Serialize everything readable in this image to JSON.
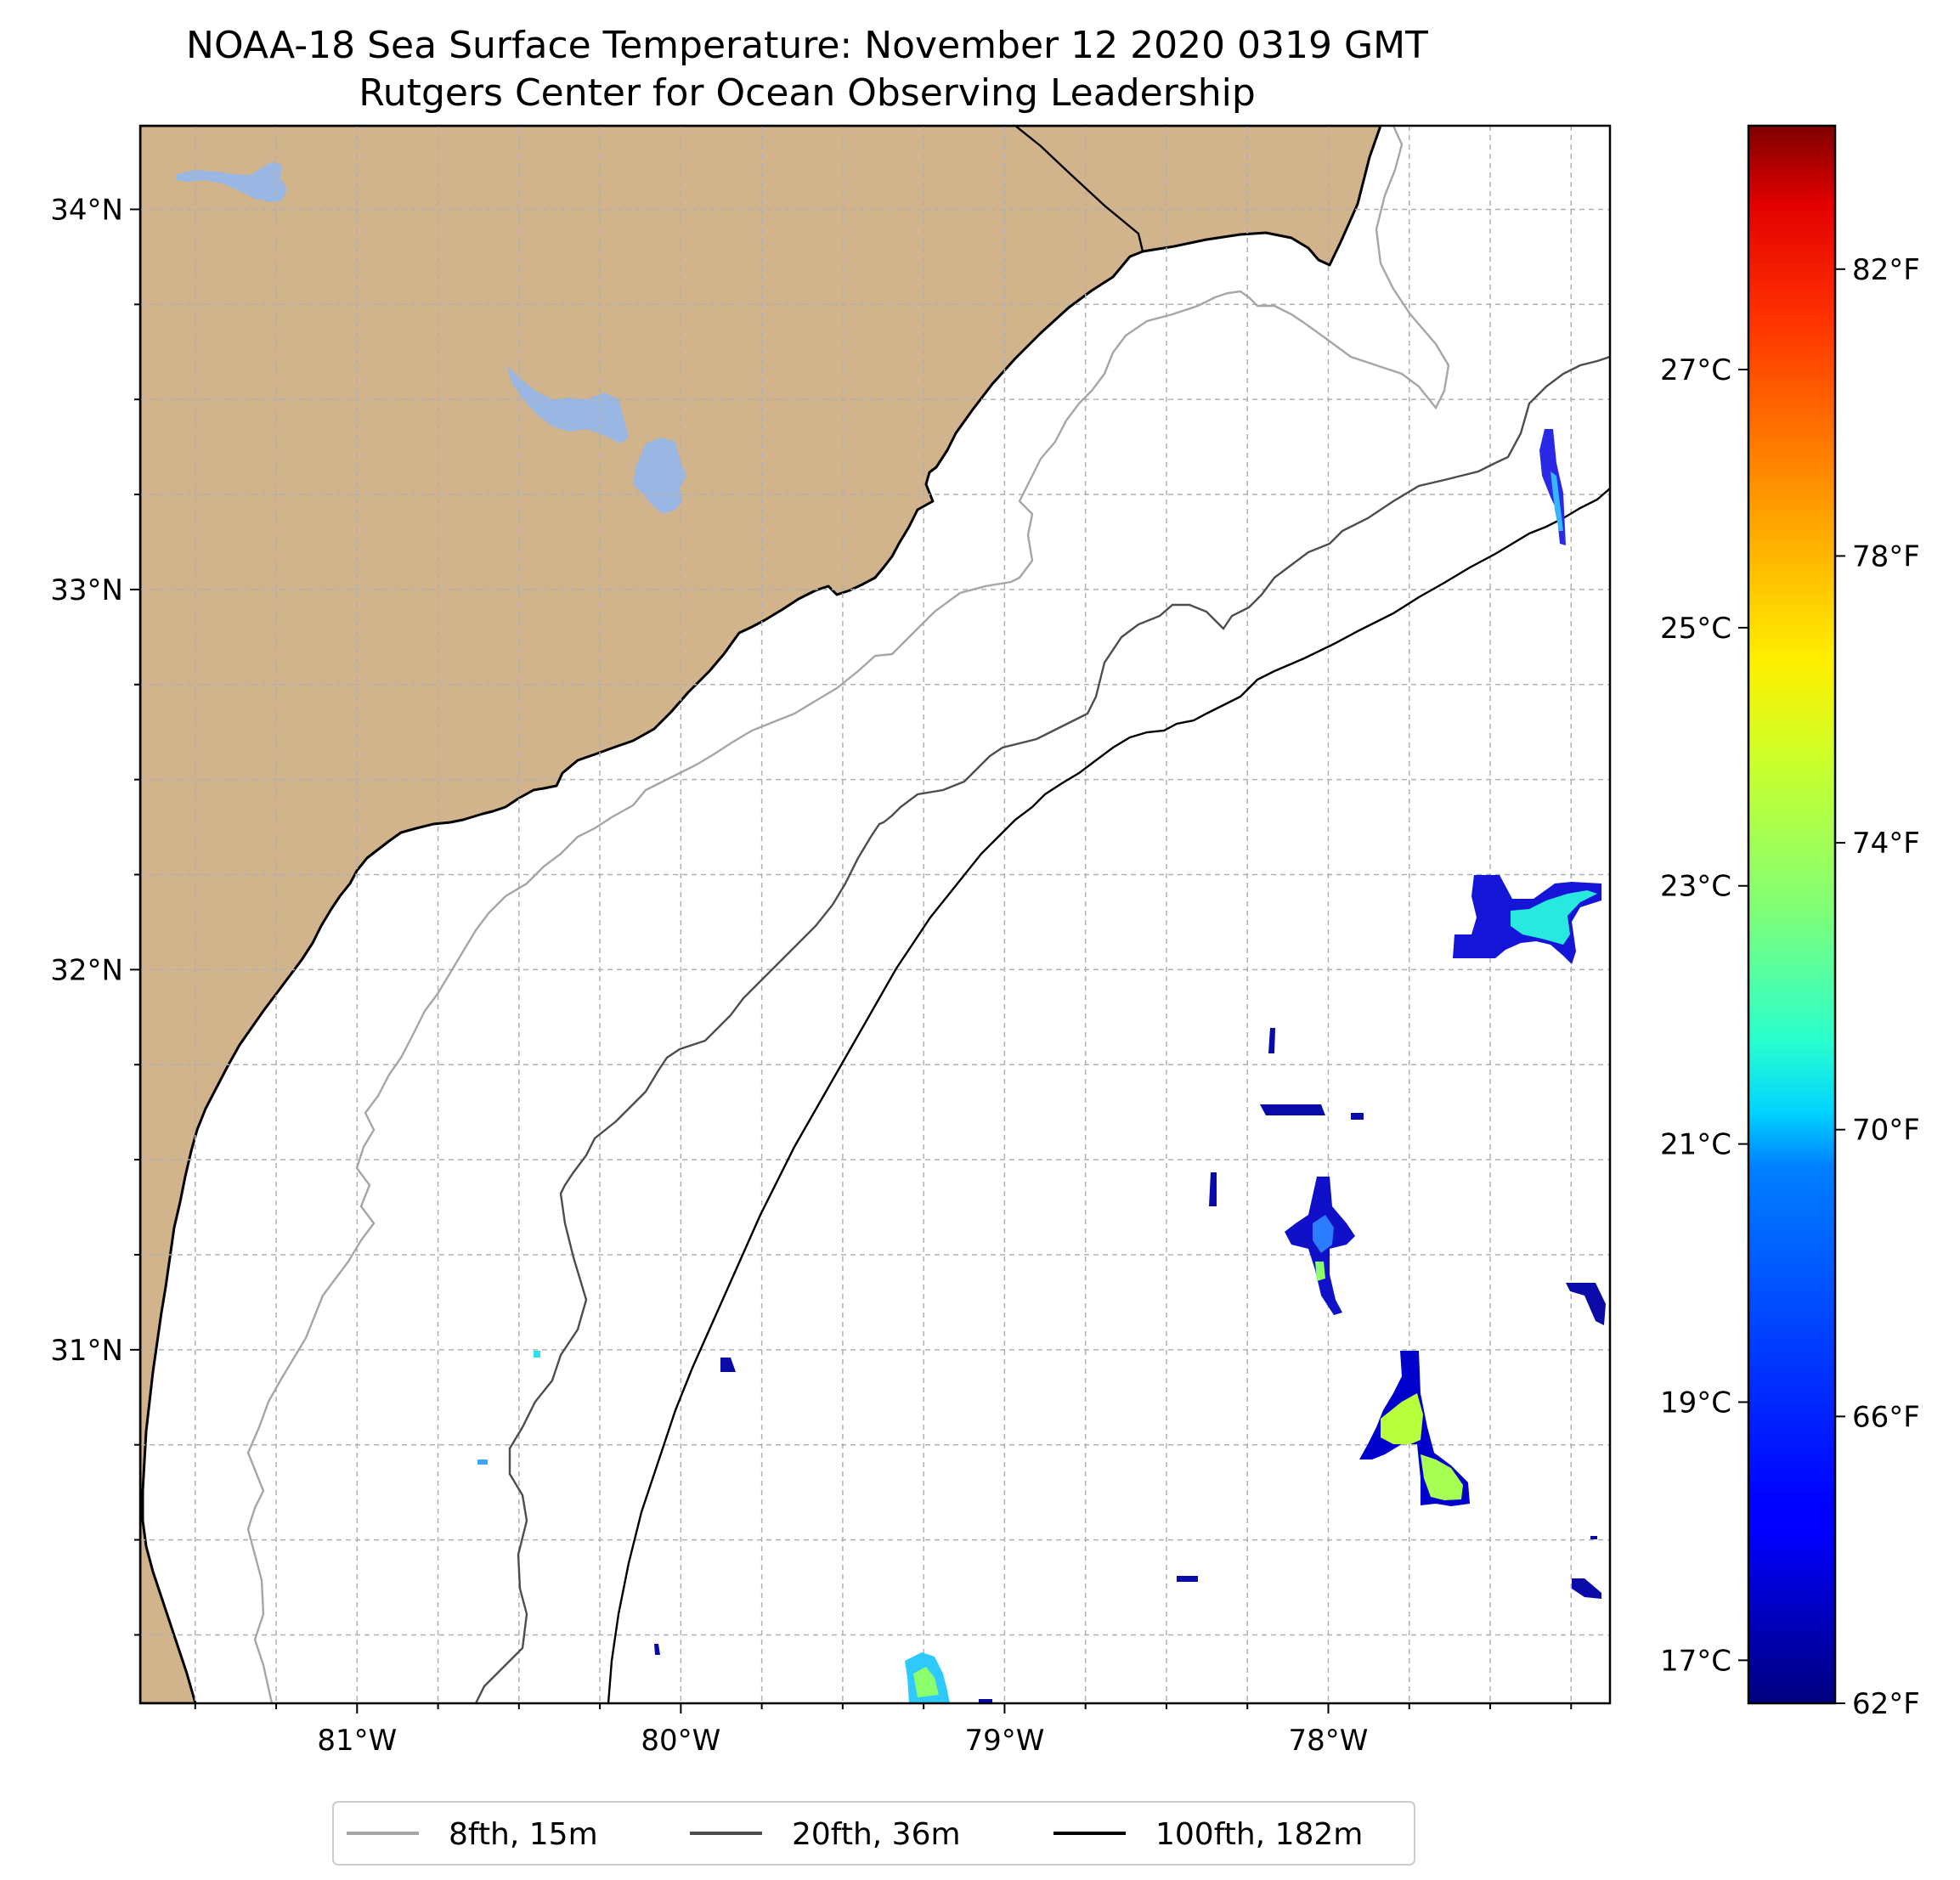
{
  "title": "NOAA-18 Sea Surface Temperature: November 12 2020 0319 GMT",
  "subtitle": "Rutgers Center for Ocean Observing Leadership",
  "map": {
    "lon_labels": [
      "81°W",
      "80°W",
      "79°W",
      "78°W"
    ],
    "lat_labels": [
      "34°N",
      "33°N",
      "32°N",
      "31°N"
    ],
    "land_color": "#d2b48c",
    "lake_color": "#9ab6e2",
    "grid": "dashed light gray, every 0.25°",
    "lon_range": [
      -81.67,
      -77.13
    ],
    "lat_range": [
      30.07,
      34.22
    ]
  },
  "colorbar": {
    "colormap": "jet",
    "fahrenheit_ticks": [
      "82°F",
      "78°F",
      "74°F",
      "70°F",
      "66°F",
      "62°F"
    ],
    "celsius_ticks": [
      "27°C",
      "25°C",
      "23°C",
      "21°C",
      "19°C",
      "17°C"
    ],
    "range_f": [
      62,
      84
    ]
  },
  "legend": {
    "placement": "bottom-center",
    "items": [
      {
        "label": "8fth, 15m",
        "color": "#a6a6a6"
      },
      {
        "label": "20fth, 36m",
        "color": "#4d4d4d"
      },
      {
        "label": "100fth, 182m",
        "color": "#000000"
      }
    ]
  }
}
